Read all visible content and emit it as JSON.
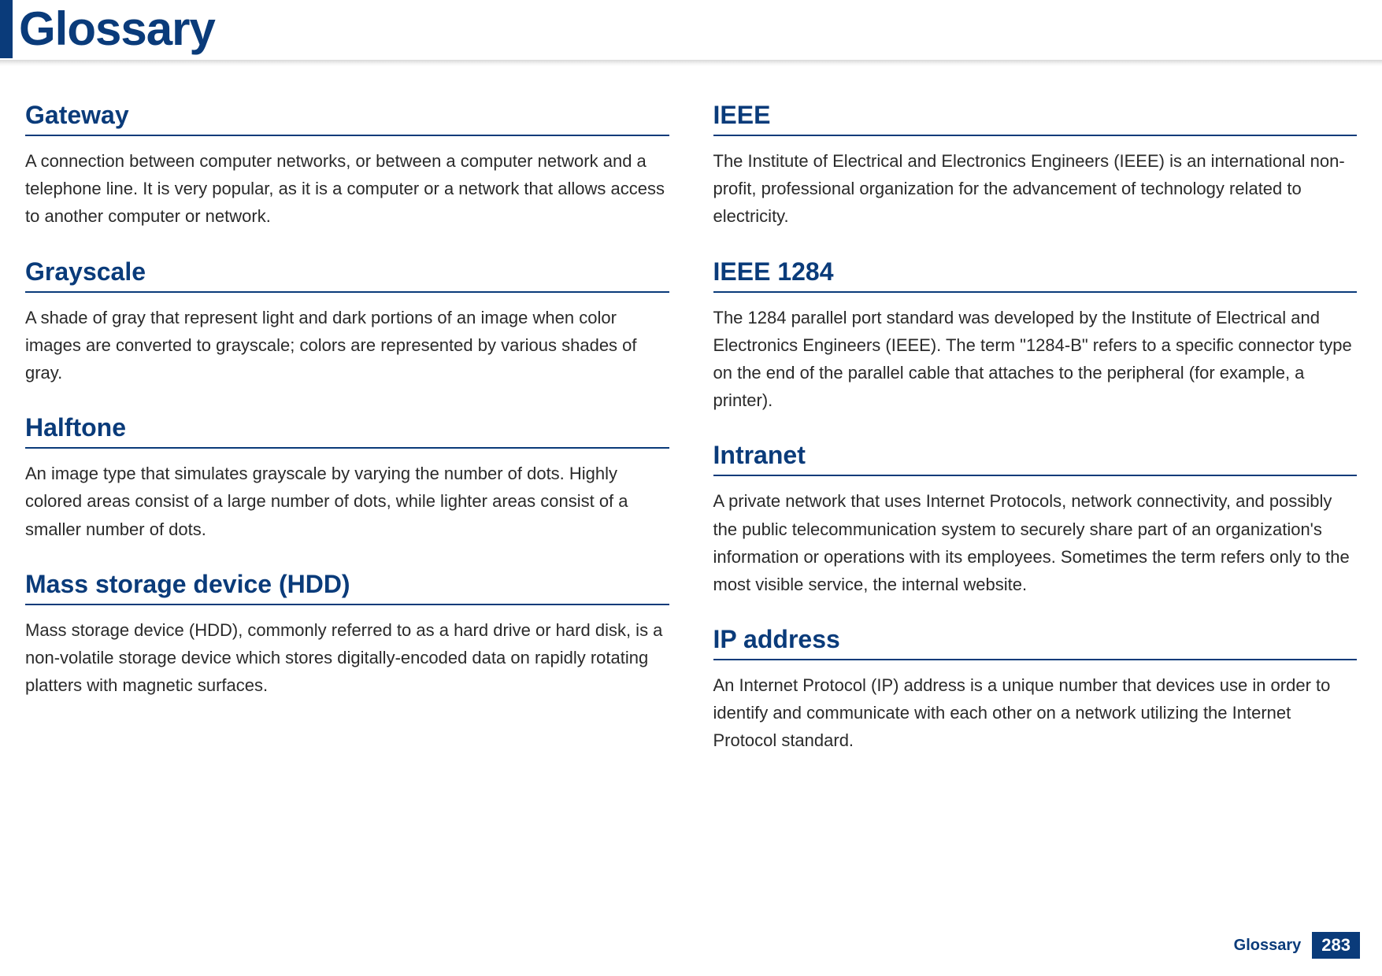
{
  "page": {
    "title": "Glossary",
    "footer_label": "Glossary",
    "page_number": "283",
    "accent_color": "#0a3b7a",
    "text_color": "#2a2a2a",
    "background_color": "#ffffff",
    "title_fontsize": 60,
    "term_fontsize": 32,
    "body_fontsize": 22
  },
  "left": [
    {
      "term": "Gateway",
      "definition": "A connection between computer networks, or between a computer network and a telephone line. It is very popular, as it is a computer or a network that allows access to another computer or network."
    },
    {
      "term": "Grayscale",
      "definition": "A shade of gray that represent light and dark portions of an image when color images are converted to grayscale; colors are represented by various shades of gray."
    },
    {
      "term": "Halftone",
      "definition": "An image type that simulates grayscale by varying the number of dots. Highly colored areas consist of a large number of dots, while lighter areas consist of a smaller number of dots."
    },
    {
      "term": "Mass storage device (HDD)",
      "definition": "Mass storage device (HDD), commonly referred to as a hard drive or hard disk, is a non-volatile storage device which stores digitally-encoded data on rapidly rotating platters with magnetic surfaces."
    }
  ],
  "right": [
    {
      "term": "IEEE",
      "definition": "The Institute of Electrical and Electronics Engineers (IEEE) is an international non-profit, professional organization for the advancement of technology related to electricity."
    },
    {
      "term": "IEEE 1284",
      "definition": "The 1284 parallel port standard was developed by the Institute of Electrical and Electronics Engineers (IEEE). The term \"1284-B\" refers to a specific connector type on the end of the parallel cable that attaches to the peripheral (for example, a printer)."
    },
    {
      "term": "Intranet",
      "definition": "A private network that uses Internet Protocols, network connectivity, and possibly the public telecommunication system to securely share part of an organization's information or operations with its employees. Sometimes the term refers only to the most visible service, the internal website."
    },
    {
      "term": "IP address",
      "definition": "An Internet Protocol (IP) address is a unique number that devices use in order to identify and communicate with each other on a network utilizing the Internet Protocol standard."
    }
  ]
}
